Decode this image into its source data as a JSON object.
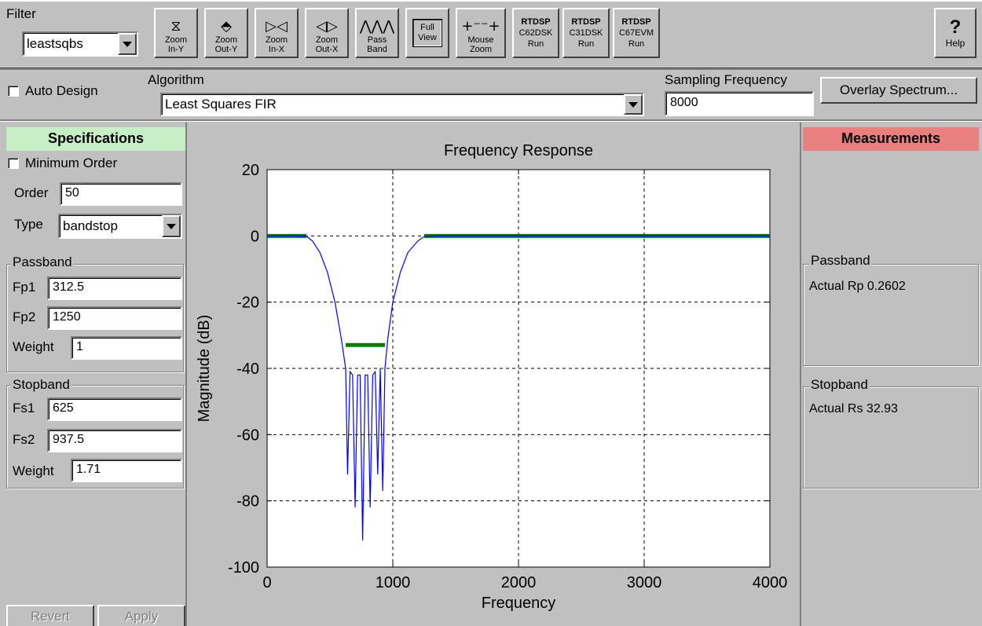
{
  "toolbar": {
    "filter_label": "Filter",
    "filter_value": "leastsqbs",
    "buttons": [
      {
        "icon": "⧖",
        "line1": "Zoom",
        "line2": "In-Y"
      },
      {
        "icon": "⬘",
        "line1": "Zoom",
        "line2": "Out-Y"
      },
      {
        "icon": "▷◁",
        "line1": "Zoom",
        "line2": "In-X"
      },
      {
        "icon": "◁▷",
        "line1": "Zoom",
        "line2": "Out-X"
      },
      {
        "icon": "⋀⋀⋀",
        "line1": "Pass",
        "line2": "Band"
      },
      {
        "icon": "",
        "line1": "Full",
        "line2": "View"
      },
      {
        "icon": "+⁻⁻+",
        "line1": "Mouse",
        "line2": "Zoom"
      },
      {
        "icon": "",
        "line1": "RTDSP",
        "line2": "C62DSK",
        "line3": "Run"
      },
      {
        "icon": "",
        "line1": "RTDSP",
        "line2": "C31DSK",
        "line3": "Run"
      },
      {
        "icon": "",
        "line1": "RTDSP",
        "line2": "C67EVM",
        "line3": "Run"
      }
    ],
    "help_icon": "?",
    "help_label": "Help"
  },
  "design": {
    "auto_design_label": "Auto Design",
    "algorithm_label": "Algorithm",
    "algorithm_value": "Least Squares FIR",
    "sampling_label": "Sampling Frequency",
    "sampling_value": "8000",
    "overlay_label": "Overlay Spectrum..."
  },
  "specs": {
    "header": "Specifications",
    "min_order_label": "Minimum Order",
    "order_label": "Order",
    "order_value": "50",
    "type_label": "Type",
    "type_value": "bandstop",
    "passband_title": "Passband",
    "fp1_label": "Fp1",
    "fp1_value": "312.5",
    "fp2_label": "Fp2",
    "fp2_value": "1250",
    "pweight_label": "Weight",
    "pweight_value": "1",
    "stopband_title": "Stopband",
    "fs1_label": "Fs1",
    "fs1_value": "625",
    "fs2_label": "Fs2",
    "fs2_value": "937.5",
    "sweight_label": "Weight",
    "sweight_value": "1.71",
    "revert_label": "Revert",
    "apply_label": "Apply"
  },
  "measurements": {
    "header": "Measurements",
    "passband_title": "Passband",
    "passband_value": "Actual Rp  0.2602",
    "stopband_title": "Stopband",
    "stopband_value": "Actual Rs  32.93"
  },
  "chart_data": {
    "type": "line",
    "title": "Frequency Response",
    "xlabel": "Frequency",
    "ylabel": "Magnitude (dB)",
    "xlim": [
      0,
      4000
    ],
    "ylim": [
      -100,
      20
    ],
    "xticks": [
      0,
      1000,
      2000,
      3000,
      4000
    ],
    "yticks": [
      20,
      0,
      -20,
      -40,
      -60,
      -80,
      -100
    ],
    "grid": true,
    "colors": {
      "response": "#0000ff",
      "spec": "#008000"
    },
    "series": [
      {
        "x": [
          0,
          200,
          312.5,
          360,
          420,
          480,
          540,
          590,
          625,
          640,
          660,
          680,
          700,
          720,
          740,
          760,
          780,
          800,
          820,
          840,
          860,
          880,
          900,
          920,
          937.5,
          960,
          1000,
          1060,
          1120,
          1200,
          1250,
          1400,
          2000,
          3000,
          4000
        ],
        "y": [
          0,
          0,
          -0.1,
          -1.5,
          -5,
          -11,
          -20,
          -31,
          -40,
          -72,
          -41,
          -42,
          -82,
          -42,
          -42,
          -92,
          -42,
          -42,
          -82,
          -42,
          -41,
          -72,
          -40,
          -77,
          -40,
          -31,
          -20,
          -11,
          -5,
          -1.5,
          -0.2,
          0,
          0,
          0,
          0
        ]
      }
    ],
    "spec_lines": [
      {
        "x": [
          0,
          312.5
        ],
        "y": [
          0,
          0
        ]
      },
      {
        "x": [
          625,
          937.5
        ],
        "y": [
          -32.93,
          -32.93
        ]
      },
      {
        "x": [
          1250,
          4000
        ],
        "y": [
          0,
          0
        ]
      }
    ]
  }
}
